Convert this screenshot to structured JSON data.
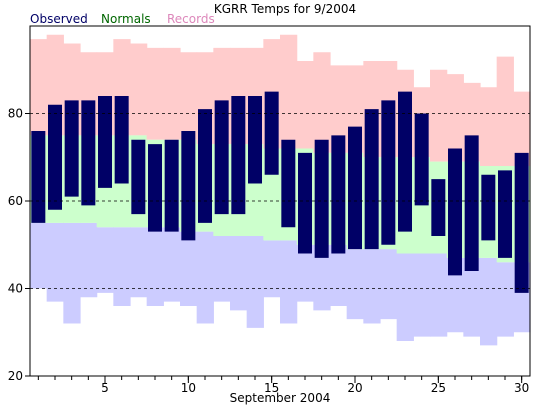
{
  "chart_data": {
    "type": "bar",
    "title": "KGRR Temps for 9/2004",
    "xlabel": "September 2004",
    "ylabel": "",
    "legend": [
      {
        "key": "observed",
        "label": "Observed",
        "color": "#000066"
      },
      {
        "key": "normals",
        "label": "Normals",
        "color": "#006600"
      },
      {
        "key": "records",
        "label": "Records",
        "color": "#dd88bb"
      }
    ],
    "colors": {
      "observed": "#000066",
      "normals": "#ccffcc",
      "records_high": "#ffcccc",
      "records_low": "#ccccff",
      "gridline": "#000000"
    },
    "x": [
      1,
      2,
      3,
      4,
      5,
      6,
      7,
      8,
      9,
      10,
      11,
      12,
      13,
      14,
      15,
      16,
      17,
      18,
      19,
      20,
      21,
      22,
      23,
      24,
      25,
      26,
      27,
      28,
      29,
      30
    ],
    "xlim": [
      0.5,
      30.5
    ],
    "ylim": [
      20,
      100
    ],
    "xticks": [
      "5",
      "10",
      "15",
      "20",
      "25",
      "30"
    ],
    "yticks": [
      "20",
      "40",
      "60",
      "80"
    ],
    "grid": "dashed horizontal at 40, 60, 80",
    "series": [
      {
        "name": "Observed",
        "key": "obs",
        "high": [
          76,
          82,
          83,
          83,
          84,
          84,
          74,
          73,
          74,
          76,
          81,
          83,
          84,
          84,
          85,
          74,
          71,
          74,
          75,
          77,
          81,
          83,
          85,
          80,
          65,
          72,
          75,
          66,
          67,
          71
        ],
        "low": [
          55,
          58,
          61,
          59,
          63,
          64,
          57,
          53,
          53,
          51,
          55,
          57,
          57,
          64,
          66,
          54,
          48,
          47,
          48,
          49,
          49,
          50,
          53,
          59,
          52,
          43,
          44,
          51,
          47,
          39
        ]
      },
      {
        "name": "Normals",
        "key": "normal",
        "high": [
          75,
          75,
          75,
          75,
          75,
          75,
          75,
          74,
          74,
          74,
          73,
          73,
          73,
          73,
          72,
          72,
          72,
          71,
          71,
          71,
          70,
          70,
          70,
          70,
          69,
          69,
          69,
          68,
          68,
          68
        ],
        "low": [
          55,
          55,
          55,
          55,
          54,
          54,
          54,
          54,
          54,
          53,
          53,
          52,
          52,
          52,
          51,
          51,
          50,
          50,
          50,
          49,
          49,
          49,
          48,
          48,
          48,
          47,
          47,
          47,
          46,
          46
        ]
      },
      {
        "name": "Records",
        "key": "record",
        "high": [
          97,
          98,
          96,
          94,
          94,
          97,
          96,
          95,
          95,
          94,
          94,
          95,
          95,
          95,
          97,
          98,
          92,
          94,
          91,
          91,
          92,
          92,
          90,
          86,
          90,
          89,
          87,
          86,
          93,
          85
        ],
        "low": [
          40,
          37,
          32,
          38,
          39,
          36,
          38,
          36,
          37,
          36,
          32,
          37,
          35,
          31,
          38,
          32,
          37,
          35,
          36,
          33,
          32,
          33,
          28,
          29,
          29,
          30,
          29,
          27,
          29,
          30
        ]
      }
    ]
  }
}
